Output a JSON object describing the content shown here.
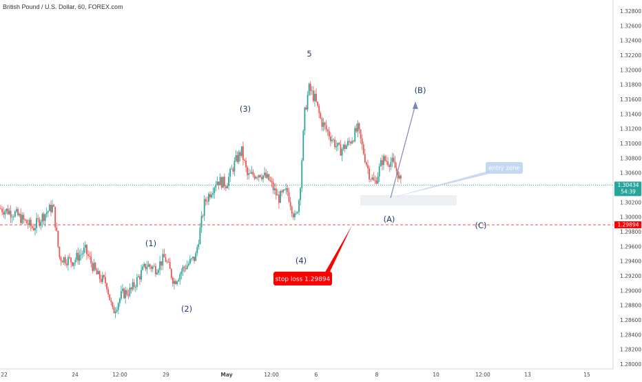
{
  "header": {
    "title": "British Pound / U.S. Dollar, 60, FOREX.com"
  },
  "price_axis": {
    "ticks": [
      "1.32800",
      "1.32600",
      "1.32400",
      "1.32200",
      "1.32000",
      "1.31800",
      "1.31600",
      "1.31400",
      "1.31200",
      "1.31000",
      "1.30800",
      "1.30600",
      "1.30400",
      "1.30200",
      "1.30000",
      "1.29800",
      "1.29600",
      "1.29400",
      "1.29200",
      "1.29000",
      "1.28800",
      "1.28600",
      "1.28400",
      "1.28200",
      "1.28000"
    ],
    "current_price": "1.30434",
    "countdown": "54:39",
    "stop_price": "1.29894"
  },
  "time_axis": {
    "labels": [
      "22",
      "24",
      "12:00",
      "29",
      "May",
      "12:00",
      "6",
      "8",
      "10",
      "12:00",
      "13",
      "15"
    ]
  },
  "annotations": {
    "wave1": "(1)",
    "wave2": "(2)",
    "wave3": "(3)",
    "wave4": "(4)",
    "wave5": "5",
    "waveA": "(A)",
    "waveB": "(B)",
    "waveC": "(C)",
    "entry_zone": "entry zone",
    "stop_loss": "stop loss 1.29894"
  },
  "colors": {
    "up": "#26a69a",
    "down": "#ef5350",
    "stop": "#ff0000",
    "current": "#26a69a",
    "wave_text": "#1e3a6e",
    "arrow": "#7b86b8"
  },
  "chart_data": {
    "type": "candlestick",
    "title": "British Pound / U.S. Dollar, 60, FOREX.com",
    "symbol": "GBP/USD",
    "timeframe": "60",
    "ylim": [
      1.279,
      1.329
    ],
    "horizontal_lines": [
      {
        "label": "current price",
        "value": 1.30434
      },
      {
        "label": "stop loss",
        "value": 1.29894
      }
    ],
    "price_path": [
      {
        "t": 0.0,
        "p": 1.3012
      },
      {
        "t": 0.025,
        "p": 1.3005
      },
      {
        "t": 0.055,
        "p": 1.2985
      },
      {
        "t": 0.075,
        "p": 1.3005
      },
      {
        "t": 0.088,
        "p": 1.3015
      },
      {
        "t": 0.098,
        "p": 1.2945
      },
      {
        "t": 0.12,
        "p": 1.294
      },
      {
        "t": 0.14,
        "p": 1.2955
      },
      {
        "t": 0.16,
        "p": 1.292
      },
      {
        "t": 0.175,
        "p": 1.291
      },
      {
        "t": 0.185,
        "p": 1.287
      },
      {
        "t": 0.2,
        "p": 1.2895
      },
      {
        "t": 0.215,
        "p": 1.29
      },
      {
        "t": 0.225,
        "p": 1.2915
      },
      {
        "t": 0.24,
        "p": 1.2935
      },
      {
        "t": 0.255,
        "p": 1.293
      },
      {
        "t": 0.27,
        "p": 1.2945
      },
      {
        "t": 0.285,
        "p": 1.2912
      },
      {
        "t": 0.3,
        "p": 1.293
      },
      {
        "t": 0.32,
        "p": 1.2945
      },
      {
        "t": 0.335,
        "p": 1.302
      },
      {
        "t": 0.355,
        "p": 1.305
      },
      {
        "t": 0.37,
        "p": 1.3045
      },
      {
        "t": 0.385,
        "p": 1.3075
      },
      {
        "t": 0.395,
        "p": 1.309
      },
      {
        "t": 0.405,
        "p": 1.3055
      },
      {
        "t": 0.425,
        "p": 1.306
      },
      {
        "t": 0.44,
        "p": 1.305
      },
      {
        "t": 0.455,
        "p": 1.3025
      },
      {
        "t": 0.47,
        "p": 1.3035
      },
      {
        "t": 0.483,
        "p": 1.2995
      },
      {
        "t": 0.49,
        "p": 1.303
      },
      {
        "t": 0.498,
        "p": 1.314
      },
      {
        "t": 0.505,
        "p": 1.3175
      },
      {
        "t": 0.515,
        "p": 1.316
      },
      {
        "t": 0.525,
        "p": 1.313
      },
      {
        "t": 0.54,
        "p": 1.311
      },
      {
        "t": 0.555,
        "p": 1.309
      },
      {
        "t": 0.57,
        "p": 1.31
      },
      {
        "t": 0.585,
        "p": 1.312
      },
      {
        "t": 0.592,
        "p": 1.3095
      },
      {
        "t": 0.603,
        "p": 1.306
      },
      {
        "t": 0.612,
        "p": 1.3045
      },
      {
        "t": 0.625,
        "p": 1.3078
      },
      {
        "t": 0.64,
        "p": 1.3075
      },
      {
        "t": 0.65,
        "p": 1.306
      },
      {
        "t": 0.655,
        "p": 1.3045
      }
    ],
    "waves": [
      {
        "label": "(1)",
        "price": 1.295
      },
      {
        "label": "(2)",
        "price": 1.2905
      },
      {
        "label": "(3)",
        "price": 1.3095
      },
      {
        "label": "(4)",
        "price": 1.299
      },
      {
        "label": "5",
        "price": 1.318
      },
      {
        "label": "(A)",
        "price": 1.304
      },
      {
        "label": "(B)",
        "price": 1.316
      },
      {
        "label": "(C)",
        "price": 1.299
      }
    ],
    "xlabel": "",
    "ylabel": ""
  }
}
